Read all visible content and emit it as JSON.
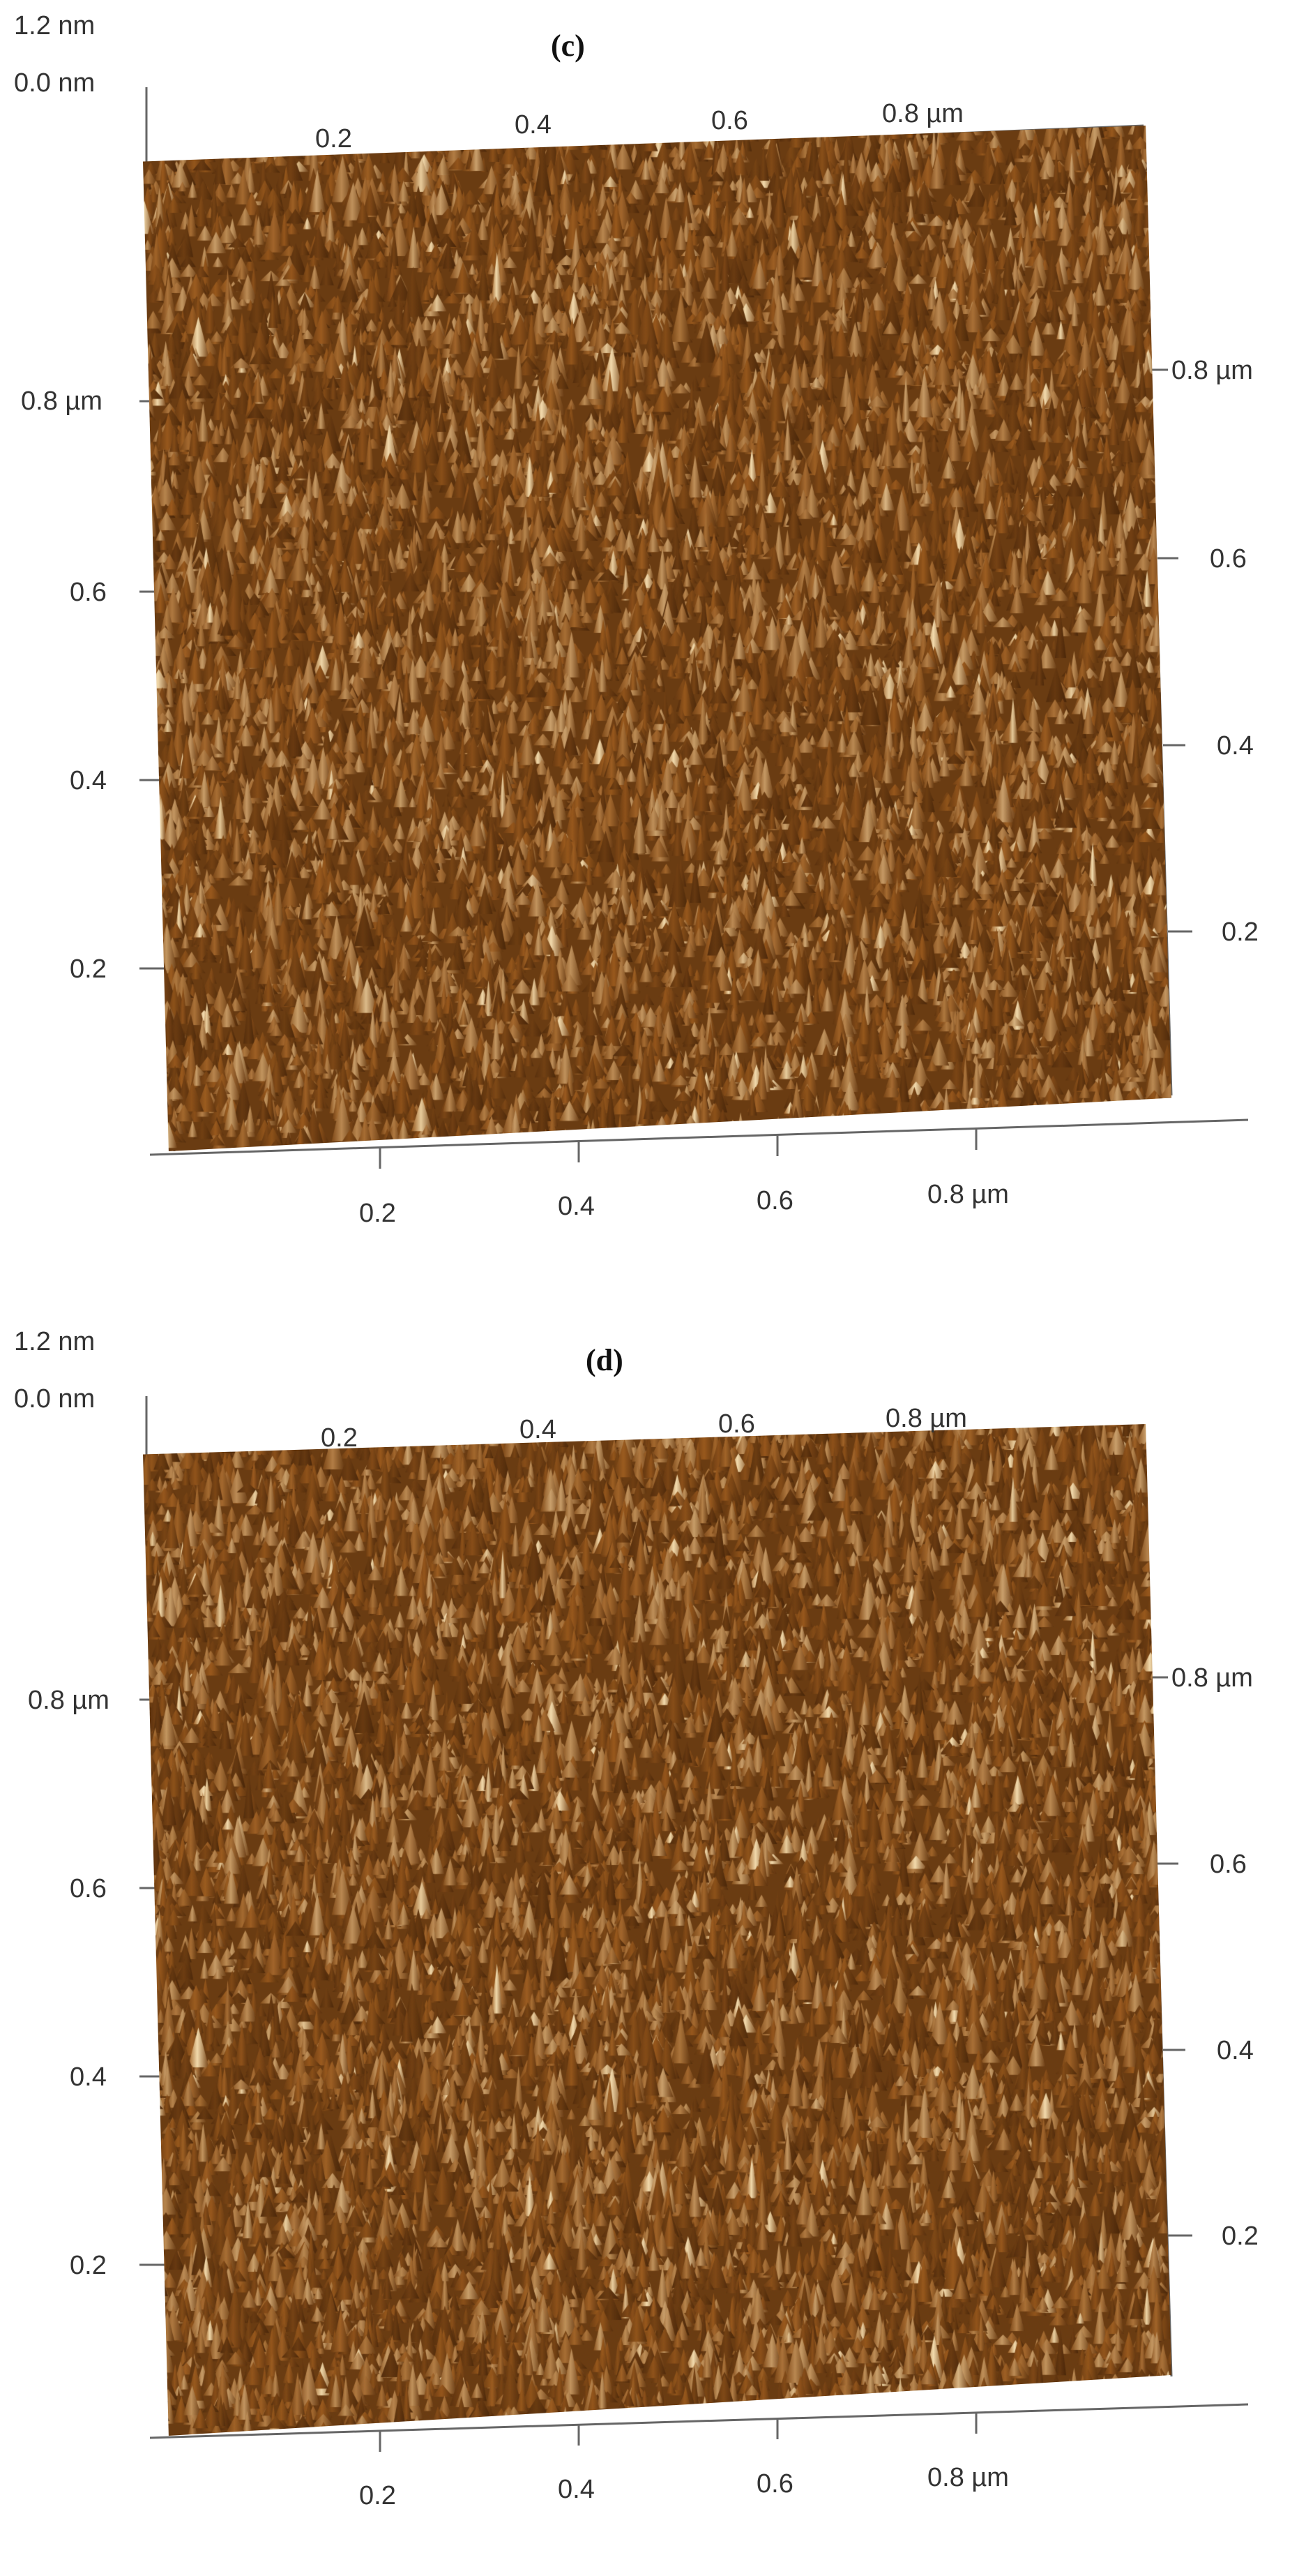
{
  "panels": [
    {
      "tag": "(c)",
      "z_top": "1.2 nm",
      "z_bottom": "0.0 nm",
      "x_ticks_top": [
        "0.2",
        "0.4",
        "0.6",
        "0.8 µm"
      ],
      "y_ticks_left": [
        "0.8 µm",
        "0.6",
        "0.4",
        "0.2"
      ],
      "y_ticks_right": [
        "0.8 µm",
        "0.6",
        "0.4",
        "0.2"
      ],
      "x_ticks_bottom": [
        "0.2",
        "0.4",
        "0.6",
        "0.8 µm"
      ]
    },
    {
      "tag": "(d)",
      "z_top": "1.2 nm",
      "z_bottom": "0.0 nm",
      "x_ticks_top": [
        "0.2",
        "0.4",
        "0.6",
        "0.8 µm"
      ],
      "y_ticks_left": [
        "0.8 µm",
        "0.6",
        "0.4",
        "0.2"
      ],
      "y_ticks_right": [
        "0.8 µm",
        "0.6",
        "0.4",
        "0.2"
      ],
      "x_ticks_bottom": [
        "0.2",
        "0.4",
        "0.6",
        "0.8 µm"
      ]
    }
  ],
  "colors": {
    "surface_dark": "#3a1d06",
    "surface_mid": "#9a5a1e",
    "surface_light": "#f3dcae"
  }
}
